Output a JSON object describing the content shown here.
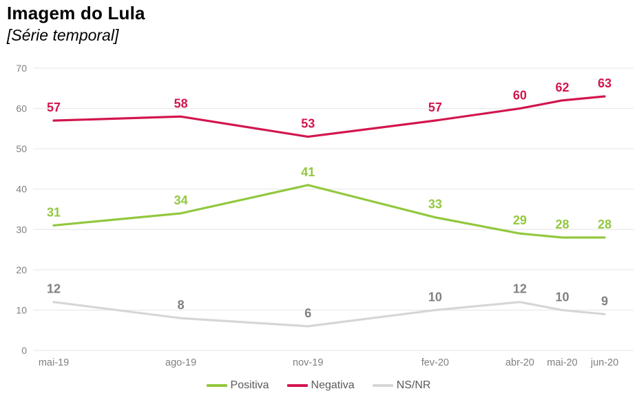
{
  "header": {
    "title": "Imagem do Lula",
    "subtitle": "[Série temporal]"
  },
  "chart_data": {
    "type": "line",
    "title": "Imagem do Lula",
    "subtitle": "[Série temporal]",
    "categories": [
      "mai-19",
      "ago-19",
      "nov-19",
      "fev-20",
      "abr-20",
      "mai-20",
      "jun-20"
    ],
    "month_offsets": [
      0,
      3,
      6,
      9,
      11,
      12,
      13
    ],
    "series": [
      {
        "name": "Positiva",
        "color": "#92c83e",
        "label_color": "#92c83e",
        "values": [
          31,
          34,
          41,
          33,
          29,
          28,
          28
        ]
      },
      {
        "name": "Negativa",
        "color": "#d2164d",
        "label_color": "#d2164d",
        "values": [
          57,
          58,
          53,
          57,
          60,
          62,
          63
        ]
      },
      {
        "name": "NS/NR",
        "color": "#d6d6d6",
        "label_color": "#808080",
        "values": [
          12,
          8,
          6,
          10,
          12,
          10,
          9
        ]
      }
    ],
    "ylim": [
      0,
      70
    ],
    "ytick_step": 10,
    "yticks": [
      0,
      10,
      20,
      30,
      40,
      50,
      60,
      70
    ],
    "grid": "horizontal",
    "legend_position": "bottom"
  },
  "colors": {
    "background": "#ffffff",
    "gridline": "#e4e4e4",
    "axis_text": "#7f7f7f",
    "legend_text": "#595959",
    "title_text": "#000000"
  }
}
